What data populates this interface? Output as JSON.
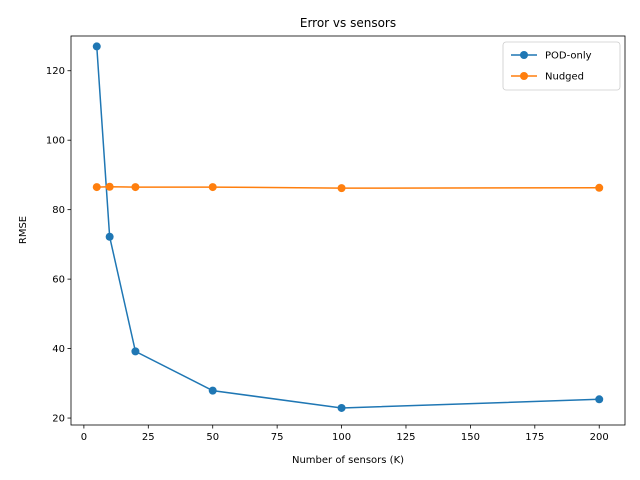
{
  "chart_data": {
    "type": "line",
    "title": "Error vs sensors",
    "xlabel": "Number of sensors (K)",
    "ylabel": "RMSE",
    "xlim": [
      -5,
      210
    ],
    "ylim": [
      18,
      130
    ],
    "x_ticks": [
      0,
      25,
      50,
      75,
      100,
      125,
      150,
      175,
      200
    ],
    "y_ticks": [
      20,
      40,
      60,
      80,
      100,
      120
    ],
    "grid": false,
    "legend_position": "top-right",
    "series": [
      {
        "name": "POD-only",
        "color": "#1f77b4",
        "marker": "circle",
        "x": [
          5,
          10,
          20,
          50,
          100,
          200
        ],
        "y": [
          127,
          72.2,
          39.2,
          27.9,
          22.9,
          25.4
        ]
      },
      {
        "name": "Nudged",
        "color": "#ff7f0e",
        "marker": "circle",
        "x": [
          5,
          10,
          20,
          50,
          100,
          200
        ],
        "y": [
          86.5,
          86.6,
          86.5,
          86.5,
          86.2,
          86.3
        ]
      }
    ]
  }
}
